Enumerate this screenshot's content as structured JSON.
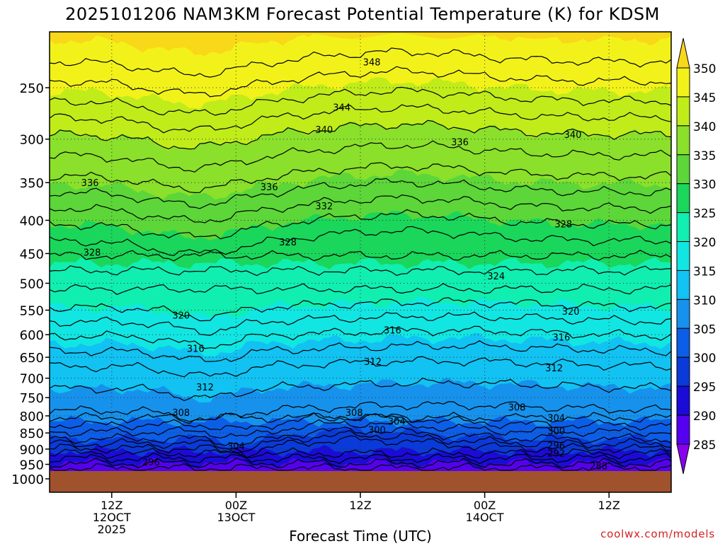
{
  "chart_data": {
    "type": "contour",
    "title": "2025101206 NAM3KM Forecast Potential Temperature (K) for KDSM",
    "xlabel": "Forecast Time (UTC)",
    "credit": "coolwx.com/models",
    "y_scale": "log",
    "y_direction": "inverted",
    "ylim": [
      1000,
      200
    ],
    "y_ticks": [
      250,
      300,
      350,
      400,
      450,
      500,
      550,
      600,
      650,
      700,
      750,
      800,
      850,
      900,
      950,
      1000
    ],
    "x_range_hours": [
      0,
      60
    ],
    "x_ticks": [
      {
        "hour": 6,
        "label": "12Z",
        "sub1": "12OCT",
        "sub2": "2025"
      },
      {
        "hour": 18,
        "label": "00Z",
        "sub1": "13OCT",
        "sub2": ""
      },
      {
        "hour": 30,
        "label": "12Z",
        "sub1": "",
        "sub2": ""
      },
      {
        "hour": 42,
        "label": "00Z",
        "sub1": "14OCT",
        "sub2": ""
      },
      {
        "hour": 54,
        "label": "12Z",
        "sub1": "",
        "sub2": ""
      }
    ],
    "colorbar": {
      "levels": [
        285,
        290,
        295,
        300,
        305,
        310,
        315,
        320,
        325,
        330,
        335,
        340,
        345,
        350
      ],
      "colors": [
        "#8800ee",
        "#5500f0",
        "#1a0cd6",
        "#0a3ad8",
        "#0c5ee6",
        "#1692ec",
        "#11c2f2",
        "#11e6e2",
        "#10eeb0",
        "#1ad65a",
        "#5cd638",
        "#8ae02a",
        "#c0ec1a",
        "#f2f21a",
        "#f8d818"
      ],
      "extend": "both"
    },
    "surface_color": "#a0522d",
    "contour_interval_K": 4,
    "isentrope_mean_pressure_hPa": [
      {
        "theta": 288,
        "p": 963
      },
      {
        "theta": 292,
        "p": 930
      },
      {
        "theta": 296,
        "p": 898
      },
      {
        "theta": 300,
        "p": 868
      },
      {
        "theta": 304,
        "p": 826
      },
      {
        "theta": 308,
        "p": 785
      },
      {
        "theta": 312,
        "p": 672
      },
      {
        "theta": 316,
        "p": 603
      },
      {
        "theta": 320,
        "p": 545
      },
      {
        "theta": 324,
        "p": 478
      },
      {
        "theta": 328,
        "p": 430
      },
      {
        "theta": 332,
        "p": 383
      },
      {
        "theta": 336,
        "p": 342
      },
      {
        "theta": 340,
        "p": 295
      },
      {
        "theta": 344,
        "p": 262
      },
      {
        "theta": 348,
        "p": 228
      }
    ],
    "contour_labels": [
      {
        "text": "348",
        "hour": 31.1,
        "p": 228
      },
      {
        "text": "344",
        "hour": 28.2,
        "p": 268
      },
      {
        "text": "340",
        "hour": 26.5,
        "p": 290
      },
      {
        "text": "336",
        "hour": 39.6,
        "p": 303
      },
      {
        "text": "340",
        "hour": 50.5,
        "p": 295
      },
      {
        "text": "336",
        "hour": 3.9,
        "p": 350
      },
      {
        "text": "336",
        "hour": 21.2,
        "p": 355
      },
      {
        "text": "332",
        "hour": 26.5,
        "p": 380
      },
      {
        "text": "328",
        "hour": 49.6,
        "p": 405
      },
      {
        "text": "328",
        "hour": 4.1,
        "p": 448
      },
      {
        "text": "328",
        "hour": 23.0,
        "p": 432
      },
      {
        "text": "324",
        "hour": 43.1,
        "p": 487
      },
      {
        "text": "320",
        "hour": 50.3,
        "p": 552
      },
      {
        "text": "320",
        "hour": 12.7,
        "p": 560
      },
      {
        "text": "316",
        "hour": 33.1,
        "p": 590
      },
      {
        "text": "316",
        "hour": 49.4,
        "p": 605
      },
      {
        "text": "316",
        "hour": 14.1,
        "p": 630
      },
      {
        "text": "312",
        "hour": 31.2,
        "p": 660
      },
      {
        "text": "312",
        "hour": 48.7,
        "p": 675
      },
      {
        "text": "312",
        "hour": 15.0,
        "p": 722
      },
      {
        "text": "308",
        "hour": 12.7,
        "p": 790
      },
      {
        "text": "308",
        "hour": 29.4,
        "p": 790
      },
      {
        "text": "308",
        "hour": 45.1,
        "p": 775
      },
      {
        "text": "304",
        "hour": 33.5,
        "p": 815
      },
      {
        "text": "304",
        "hour": 48.9,
        "p": 805
      },
      {
        "text": "300",
        "hour": 31.6,
        "p": 840
      },
      {
        "text": "300",
        "hour": 48.9,
        "p": 843
      },
      {
        "text": "304",
        "hour": 18.0,
        "p": 890
      },
      {
        "text": "296",
        "hour": 48.9,
        "p": 888
      },
      {
        "text": "292",
        "hour": 48.9,
        "p": 912
      },
      {
        "text": "296",
        "hour": 9.8,
        "p": 942
      },
      {
        "text": "288",
        "hour": 53.0,
        "p": 955
      }
    ]
  }
}
